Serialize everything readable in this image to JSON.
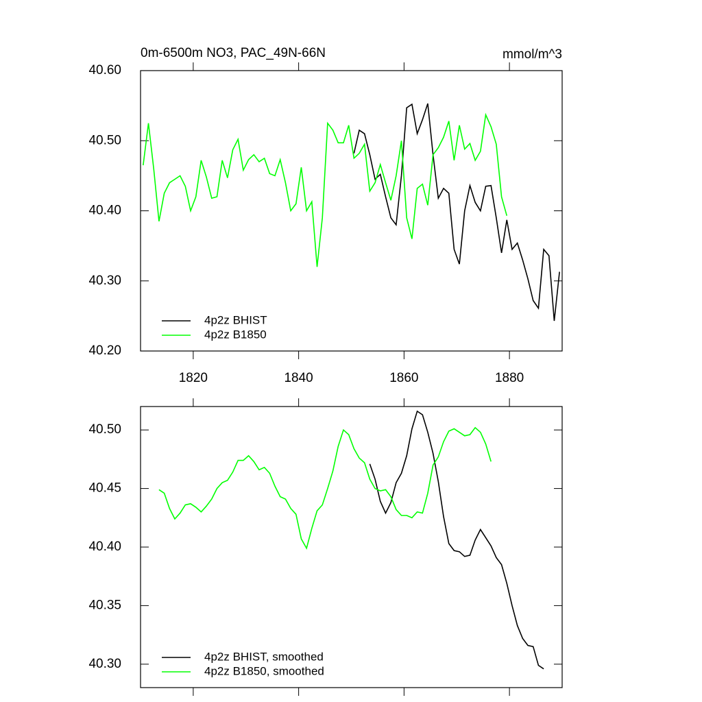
{
  "chart_data": [
    {
      "type": "line",
      "title": "0m-6500m NO3, PAC_49N-66N",
      "unit_label": "mmol/m^3",
      "x": [
        1810.5,
        1811.5,
        1812.5,
        1813.5,
        1814.5,
        1815.5,
        1816.5,
        1817.5,
        1818.5,
        1819.5,
        1820.5,
        1821.5,
        1822.5,
        1823.5,
        1824.5,
        1825.5,
        1826.5,
        1827.5,
        1828.5,
        1829.5,
        1830.5,
        1831.5,
        1832.5,
        1833.5,
        1834.5,
        1835.5,
        1836.5,
        1837.5,
        1838.5,
        1839.5,
        1840.5,
        1841.5,
        1842.5,
        1843.5,
        1844.5,
        1845.5,
        1846.5,
        1847.5,
        1848.5,
        1849.5,
        1850.5,
        1851.5,
        1852.5,
        1853.5,
        1854.5,
        1855.5,
        1856.5,
        1857.5,
        1858.5,
        1859.5,
        1860.5,
        1861.5,
        1862.5,
        1863.5,
        1864.5,
        1865.5,
        1866.5,
        1867.5,
        1868.5,
        1869.5,
        1870.5,
        1871.5,
        1872.5,
        1873.5,
        1874.5,
        1875.5,
        1876.5,
        1877.5,
        1878.5,
        1879.5,
        1880.5,
        1881.5,
        1882.5,
        1883.5,
        1884.5,
        1885.5,
        1886.5,
        1887.5,
        1888.5,
        1889.5
      ],
      "series": [
        {
          "name": "4p2z BHIST",
          "color": "#000000",
          "values": [
            null,
            null,
            null,
            null,
            null,
            null,
            null,
            null,
            null,
            null,
            null,
            null,
            null,
            null,
            null,
            null,
            null,
            null,
            null,
            null,
            null,
            null,
            null,
            null,
            null,
            null,
            null,
            null,
            null,
            null,
            null,
            null,
            null,
            null,
            null,
            null,
            null,
            null,
            null,
            null,
            40.482,
            40.515,
            40.51,
            40.48,
            40.445,
            40.452,
            40.42,
            40.39,
            40.38,
            40.45,
            40.547,
            40.552,
            40.51,
            40.53,
            40.553,
            40.48,
            40.418,
            40.432,
            40.425,
            40.345,
            40.324,
            40.4,
            40.436,
            40.412,
            40.4,
            40.435,
            40.436,
            40.39,
            40.34,
            40.387,
            40.345,
            40.354,
            40.33,
            40.303,
            40.272,
            40.261,
            40.345,
            40.336,
            40.243,
            40.313
          ]
        },
        {
          "name": "4p2z B1850",
          "color": "#00ff00",
          "values": [
            40.465,
            40.525,
            40.46,
            40.385,
            40.425,
            40.44,
            40.445,
            40.45,
            40.435,
            40.4,
            40.42,
            40.472,
            40.448,
            40.418,
            40.42,
            40.472,
            40.447,
            40.487,
            40.502,
            40.458,
            40.473,
            40.48,
            40.47,
            40.475,
            40.453,
            40.45,
            40.473,
            40.44,
            40.4,
            40.41,
            40.462,
            40.4,
            40.413,
            40.32,
            40.39,
            40.525,
            40.515,
            40.497,
            40.497,
            40.522,
            40.475,
            40.482,
            40.495,
            40.428,
            40.44,
            40.466,
            40.44,
            40.415,
            40.45,
            40.5,
            40.39,
            40.36,
            40.432,
            40.438,
            40.408,
            40.48,
            40.49,
            40.505,
            40.528,
            40.472,
            40.522,
            40.488,
            40.496,
            40.472,
            40.485,
            40.537,
            40.52,
            40.495,
            40.42,
            40.393,
            null,
            null,
            null,
            null,
            null,
            null,
            null,
            null,
            null,
            null
          ]
        }
      ],
      "xlim": [
        1810,
        1890
      ],
      "xticks": [
        1820,
        1840,
        1860,
        1880
      ],
      "show_xtick_labels": true,
      "ylim": [
        40.2,
        40.6
      ],
      "yticks": [
        {
          "value": 40.2,
          "label": "40.20"
        },
        {
          "value": 40.3,
          "label": "40.30"
        },
        {
          "value": 40.4,
          "label": "40.40"
        },
        {
          "value": 40.5,
          "label": "40.50"
        },
        {
          "value": 40.6,
          "label": "40.60"
        }
      ],
      "legend": "lower left"
    },
    {
      "type": "line",
      "x": [
        1813.5,
        1814.5,
        1815.5,
        1816.5,
        1817.5,
        1818.5,
        1819.5,
        1820.5,
        1821.5,
        1822.5,
        1823.5,
        1824.5,
        1825.5,
        1826.5,
        1827.5,
        1828.5,
        1829.5,
        1830.5,
        1831.5,
        1832.5,
        1833.5,
        1834.5,
        1835.5,
        1836.5,
        1837.5,
        1838.5,
        1839.5,
        1840.5,
        1841.5,
        1842.5,
        1843.5,
        1844.5,
        1845.5,
        1846.5,
        1847.5,
        1848.5,
        1849.5,
        1850.5,
        1851.5,
        1852.5,
        1853.5,
        1854.5,
        1855.5,
        1856.5,
        1857.5,
        1858.5,
        1859.5,
        1860.5,
        1861.5,
        1862.5,
        1863.5,
        1864.5,
        1865.5,
        1866.5,
        1867.5,
        1868.5,
        1869.5,
        1870.5,
        1871.5,
        1872.5,
        1873.5,
        1874.5,
        1875.5,
        1876.5,
        1877.5,
        1878.5,
        1879.5,
        1880.5,
        1881.5,
        1882.5,
        1883.5,
        1884.5,
        1885.5,
        1886.5
      ],
      "series": [
        {
          "name": "4p2z BHIST, smoothed",
          "color": "#000000",
          "values": [
            null,
            null,
            null,
            null,
            null,
            null,
            null,
            null,
            null,
            null,
            null,
            null,
            null,
            null,
            null,
            null,
            null,
            null,
            null,
            null,
            null,
            null,
            null,
            null,
            null,
            null,
            null,
            null,
            null,
            null,
            null,
            null,
            null,
            null,
            null,
            null,
            null,
            null,
            null,
            null,
            40.471,
            40.458,
            40.439,
            40.429,
            40.438,
            40.455,
            40.463,
            40.478,
            40.501,
            40.516,
            40.513,
            40.498,
            40.48,
            40.456,
            40.426,
            40.403,
            40.397,
            40.396,
            40.392,
            40.393,
            40.406,
            40.415,
            40.408,
            40.401,
            40.391,
            40.385,
            40.369,
            40.35,
            40.333,
            40.322,
            40.316,
            40.315,
            40.299,
            40.296
          ]
        },
        {
          "name": "4p2z B1850, smoothed",
          "color": "#00ff00",
          "values": [
            40.449,
            40.446,
            40.433,
            40.424,
            40.429,
            40.436,
            40.437,
            40.434,
            40.43,
            40.435,
            40.441,
            40.45,
            40.455,
            40.457,
            40.464,
            40.474,
            40.474,
            40.478,
            40.473,
            40.466,
            40.468,
            40.463,
            40.452,
            40.443,
            40.441,
            40.433,
            40.428,
            40.407,
            40.399,
            40.416,
            40.431,
            40.436,
            40.45,
            40.465,
            40.486,
            40.5,
            40.496,
            40.484,
            40.476,
            40.472,
            40.458,
            40.45,
            40.448,
            40.449,
            40.443,
            40.432,
            40.427,
            40.427,
            40.425,
            40.43,
            40.429,
            40.446,
            40.47,
            40.477,
            40.49,
            40.499,
            40.501,
            40.498,
            40.495,
            40.496,
            40.502,
            40.498,
            40.488,
            40.473,
            null,
            null,
            null,
            null,
            null,
            null,
            null,
            null,
            null,
            null
          ]
        }
      ],
      "xlim": [
        1810,
        1890
      ],
      "xticks": [
        1820,
        1840,
        1860,
        1880
      ],
      "show_xtick_labels": false,
      "ylim": [
        40.28,
        40.52
      ],
      "yticks": [
        {
          "value": 40.3,
          "label": "40.30"
        },
        {
          "value": 40.35,
          "label": "40.35"
        },
        {
          "value": 40.4,
          "label": "40.40"
        },
        {
          "value": 40.45,
          "label": "40.45"
        },
        {
          "value": 40.5,
          "label": "40.50"
        }
      ],
      "legend": "lower left"
    }
  ]
}
